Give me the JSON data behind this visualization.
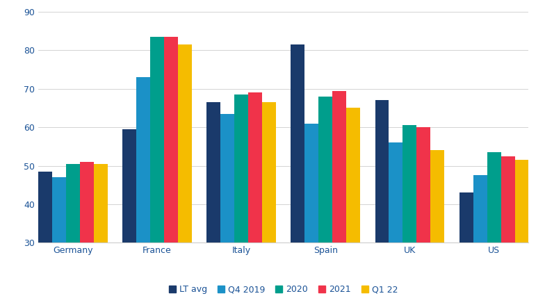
{
  "categories": [
    "Germany",
    "France",
    "Italy",
    "Spain",
    "UK",
    "US"
  ],
  "series": {
    "LT avg": [
      48.5,
      59.5,
      66.5,
      81.5,
      67.0,
      43.0
    ],
    "Q4 2019": [
      47.0,
      73.0,
      63.5,
      61.0,
      56.0,
      47.5
    ],
    "2020": [
      50.5,
      83.5,
      68.5,
      68.0,
      60.5,
      53.5
    ],
    "2021": [
      51.0,
      83.5,
      69.0,
      69.5,
      60.0,
      52.5
    ],
    "Q1 22": [
      50.5,
      81.5,
      66.5,
      65.0,
      54.0,
      51.5
    ]
  },
  "colors": {
    "LT avg": "#1a3a6b",
    "Q4 2019": "#1b91c7",
    "2020": "#009e8c",
    "2021": "#f0334a",
    "Q1 22": "#f5bc00"
  },
  "ylim": [
    30,
    90
  ],
  "yticks": [
    30,
    40,
    50,
    60,
    70,
    80,
    90
  ],
  "background_color": "#ffffff",
  "legend_labels": [
    "LT avg",
    "Q4 2019",
    "2020",
    "2021",
    "Q1 22"
  ],
  "tick_color": "#1a5296",
  "label_color": "#1a5296"
}
